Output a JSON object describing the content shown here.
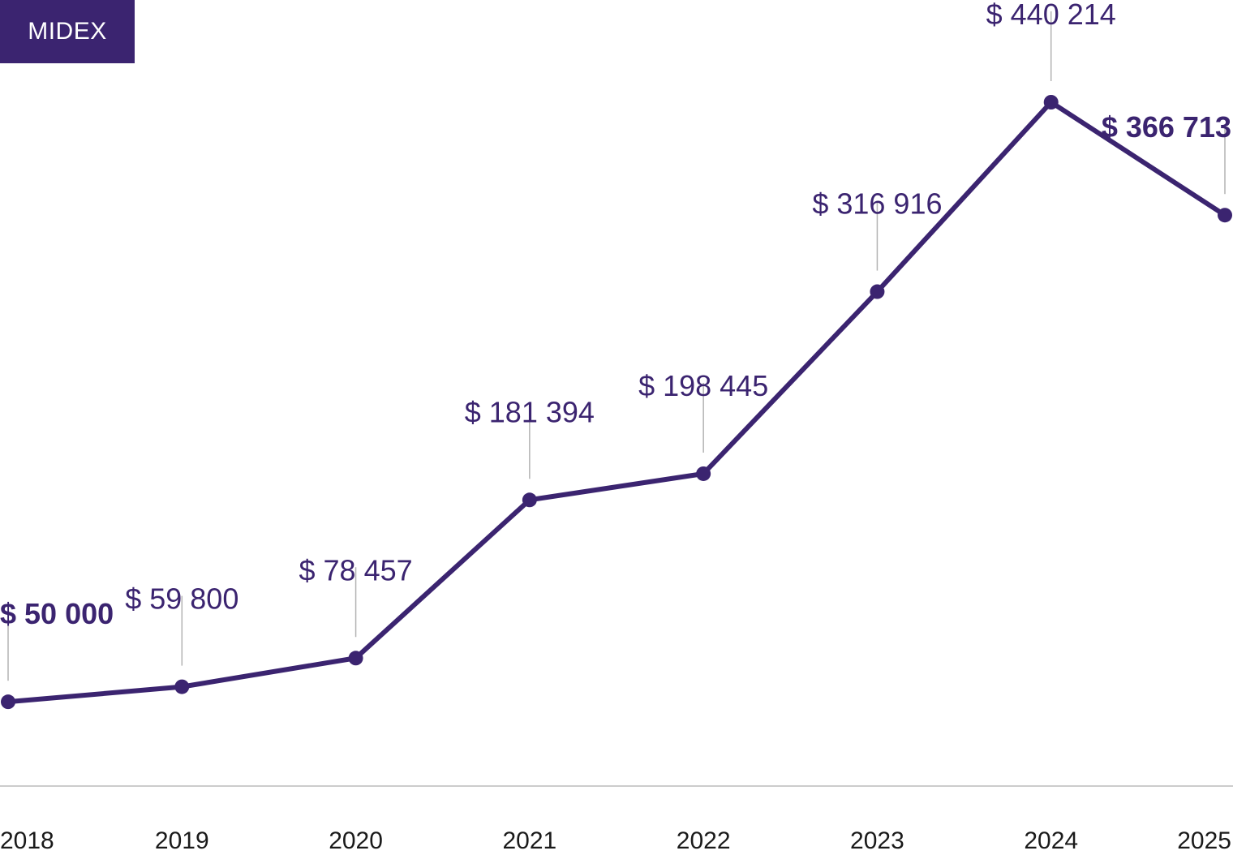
{
  "badge": {
    "label": "MIDEX"
  },
  "colors": {
    "accent": "#3b2470",
    "leader": "#b3b3b3",
    "axis": "#cccccc",
    "tick_text": "#1a1a1a"
  },
  "chart_data": {
    "type": "line",
    "title": "",
    "xlabel": "",
    "ylabel": "",
    "categories": [
      "2018",
      "2019",
      "2020",
      "2021",
      "2022",
      "2023",
      "2024",
      "2025"
    ],
    "values": [
      50000,
      59800,
      78457,
      181394,
      198445,
      316916,
      440214,
      366713
    ],
    "data_labels": [
      "$ 50 000",
      "$ 59 800",
      "$ 78 457",
      "$ 181 394",
      "$ 198 445",
      "$ 316 916",
      "$ 440 214",
      "$ 366 713"
    ],
    "bold_labels": [
      "2018",
      "2025"
    ],
    "ylim": [
      20000,
      440214
    ],
    "grid": false,
    "legend": "none"
  }
}
